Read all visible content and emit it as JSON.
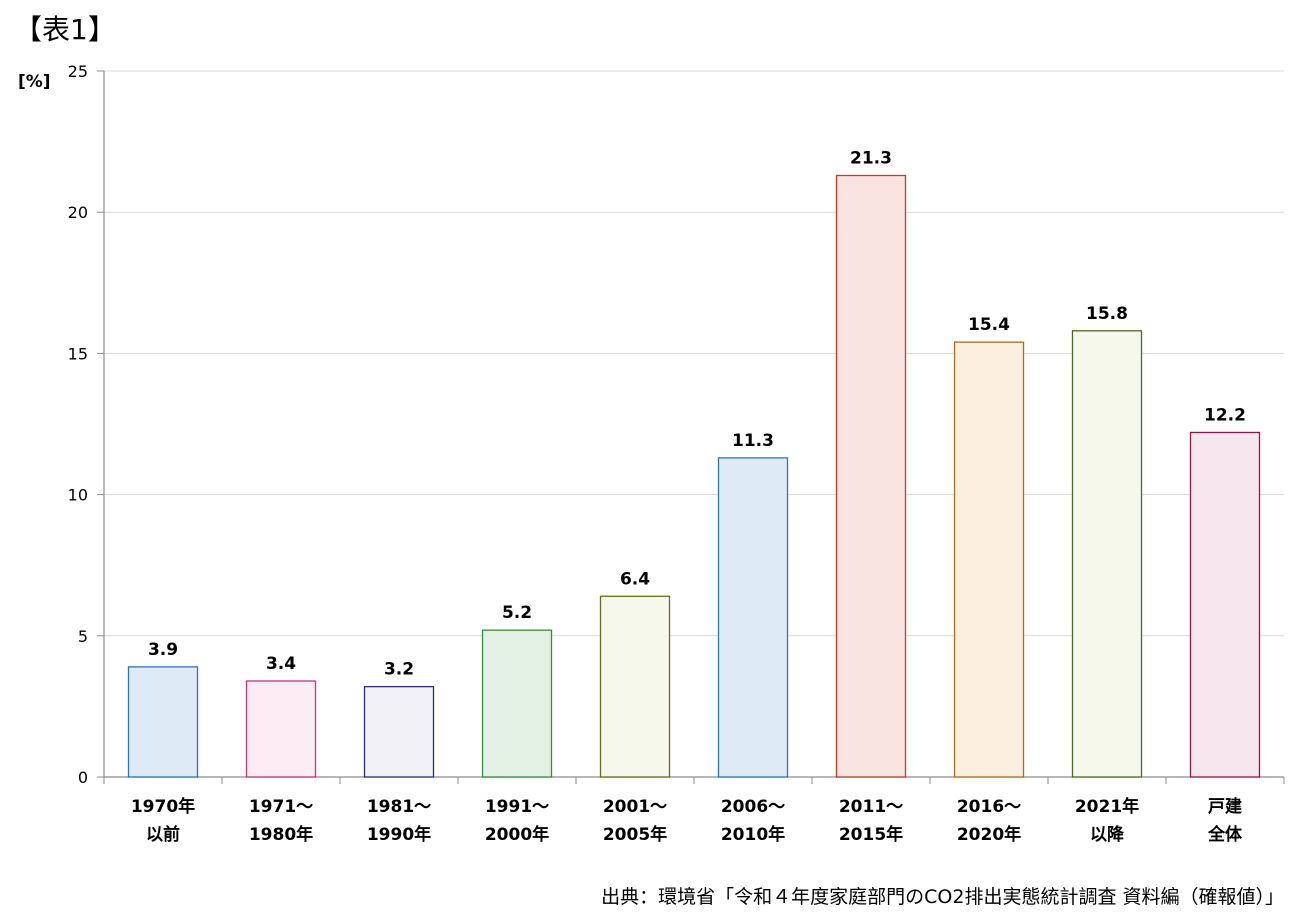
{
  "header": {
    "table_label": "【表1】",
    "unit_label": "[%]"
  },
  "footer": {
    "source": "出典：環境省「令和４年度家庭部門のCO2排出実態統計調査 資料編（確報値）」"
  },
  "chart_data": {
    "type": "bar",
    "title": "",
    "xlabel": "",
    "ylabel": "[%]",
    "ylim": [
      0,
      25
    ],
    "yticks": [
      0,
      5,
      10,
      15,
      20,
      25
    ],
    "grid": true,
    "categories": [
      [
        "1970年",
        "以前"
      ],
      [
        "1971～",
        "1980年"
      ],
      [
        "1981～",
        "1990年"
      ],
      [
        "1991～",
        "2000年"
      ],
      [
        "2001～",
        "2005年"
      ],
      [
        "2006～",
        "2010年"
      ],
      [
        "2011～",
        "2015年"
      ],
      [
        "2016～",
        "2020年"
      ],
      [
        "2021年",
        "以降"
      ],
      [
        "戸建",
        "全体"
      ]
    ],
    "values": [
      3.9,
      3.4,
      3.2,
      5.2,
      6.4,
      11.3,
      21.3,
      15.4,
      15.8,
      12.2
    ],
    "value_labels": [
      "3.9",
      "3.4",
      "3.2",
      "5.2",
      "6.4",
      "11.3",
      "21.3",
      "15.4",
      "15.8",
      "12.2"
    ],
    "bar_fill_colors": [
      "#deebf5",
      "#fcecf3",
      "#f2f1f8",
      "#e3f0e4",
      "#f7f8ec",
      "#deebf5",
      "#fae4e2",
      "#fbefe0",
      "#f7f8ec",
      "#f5e6ee"
    ],
    "bar_stroke_colors": [
      "#2e75b6",
      "#c0397a",
      "#2b2f7a",
      "#3a8a3f",
      "#6b6b1f",
      "#2e75b6",
      "#c0392b",
      "#b26b1c",
      "#4f6b1f",
      "#8a1a4a"
    ]
  }
}
